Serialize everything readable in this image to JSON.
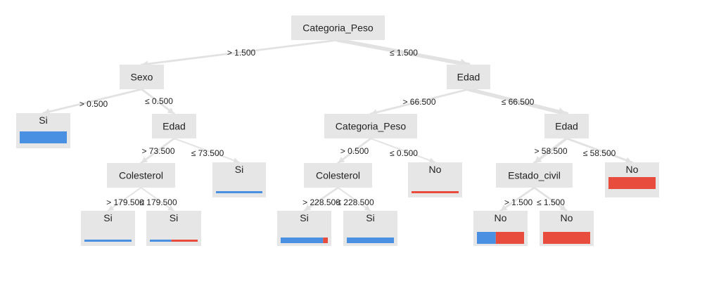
{
  "colors": {
    "si": "#4a90e2",
    "no": "#e84c3d",
    "node": "#e6e6e6",
    "edge": "#e2e2e2"
  },
  "nodes": [
    {
      "id": "root",
      "label": "Categoria_Peso",
      "leaf": false
    },
    {
      "id": "sexo",
      "label": "Sexo",
      "leaf": false
    },
    {
      "id": "edad1",
      "label": "Edad",
      "leaf": false
    },
    {
      "id": "si_sexo",
      "label": "Si",
      "leaf": true,
      "si_share": 1.0
    },
    {
      "id": "edad2",
      "label": "Edad",
      "leaf": false
    },
    {
      "id": "col1",
      "label": "Colesterol",
      "leaf": false
    },
    {
      "id": "si_edad2",
      "label": "Si",
      "leaf": true,
      "si_share": 1.0
    },
    {
      "id": "si_col1a",
      "label": "Si",
      "leaf": true,
      "si_share": 1.0
    },
    {
      "id": "si_col1b",
      "label": "Si",
      "leaf": true,
      "si_share": 0.45
    },
    {
      "id": "cp2",
      "label": "Categoria_Peso",
      "leaf": false
    },
    {
      "id": "edad3",
      "label": "Edad",
      "leaf": false
    },
    {
      "id": "col2",
      "label": "Colesterol",
      "leaf": false
    },
    {
      "id": "no_cp2",
      "label": "No",
      "leaf": true,
      "si_share": 0.0
    },
    {
      "id": "si_col2a",
      "label": "Si",
      "leaf": true,
      "si_share": 0.9
    },
    {
      "id": "si_col2b",
      "label": "Si",
      "leaf": true,
      "si_share": 1.0
    },
    {
      "id": "ec",
      "label": "Estado_civil",
      "leaf": false
    },
    {
      "id": "no_edad3",
      "label": "No",
      "leaf": true,
      "si_share": 0.0
    },
    {
      "id": "no_ec1",
      "label": "No",
      "leaf": true,
      "si_share": 0.4
    },
    {
      "id": "no_ec2",
      "label": "No",
      "leaf": true,
      "si_share": 0.0
    }
  ],
  "edges": [
    {
      "from": "root",
      "to": "sexo",
      "label": "> 1.500",
      "weight": 2
    },
    {
      "from": "root",
      "to": "edad1",
      "label": "≤ 1.500",
      "weight": 5
    },
    {
      "from": "sexo",
      "to": "si_sexo",
      "label": "> 0.500",
      "weight": 2
    },
    {
      "from": "sexo",
      "to": "edad2",
      "label": "≤ 0.500",
      "weight": 2
    },
    {
      "from": "edad2",
      "to": "col1",
      "label": "> 73.500",
      "weight": 2
    },
    {
      "from": "edad2",
      "to": "si_edad2",
      "label": "≤ 73.500",
      "weight": 1
    },
    {
      "from": "col1",
      "to": "si_col1a",
      "label": "> 179.500",
      "weight": 1
    },
    {
      "from": "col1",
      "to": "si_col1b",
      "label": "≤ 179.500",
      "weight": 1
    },
    {
      "from": "edad1",
      "to": "cp2",
      "label": "> 66.500",
      "weight": 2
    },
    {
      "from": "edad1",
      "to": "edad3",
      "label": "≤ 66.500",
      "weight": 5
    },
    {
      "from": "cp2",
      "to": "col2",
      "label": "> 0.500",
      "weight": 2
    },
    {
      "from": "cp2",
      "to": "no_cp2",
      "label": "≤ 0.500",
      "weight": 1
    },
    {
      "from": "col2",
      "to": "si_col2a",
      "label": "> 228.500",
      "weight": 2
    },
    {
      "from": "col2",
      "to": "si_col2b",
      "label": "≤ 228.500",
      "weight": 1
    },
    {
      "from": "edad3",
      "to": "ec",
      "label": "> 58.500",
      "weight": 3
    },
    {
      "from": "edad3",
      "to": "no_edad3",
      "label": "≤ 58.500",
      "weight": 2
    },
    {
      "from": "ec",
      "to": "no_ec1",
      "label": "> 1.500",
      "weight": 2
    },
    {
      "from": "ec",
      "to": "no_ec2",
      "label": "≤ 1.500",
      "weight": 2
    }
  ]
}
